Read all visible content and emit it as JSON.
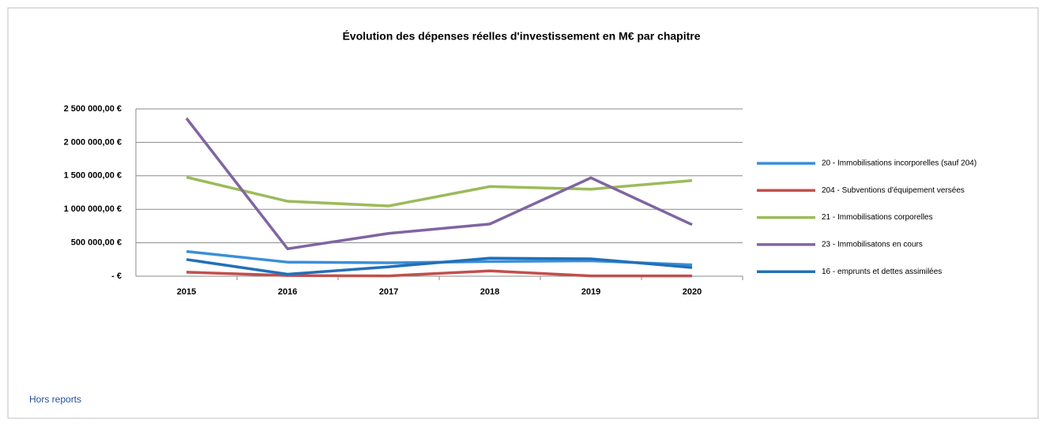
{
  "chart_data": {
    "type": "line",
    "title": "Évolution des dépenses réelles d'investissement en M€ par chapitre",
    "categories": [
      "2015",
      "2016",
      "2017",
      "2018",
      "2019",
      "2020"
    ],
    "series": [
      {
        "name": "20 - Immobilisations incorporelles (sauf 204)",
        "color": "#3b8fd6",
        "values": [
          370000,
          210000,
          200000,
          220000,
          230000,
          170000
        ]
      },
      {
        "name": "204 - Subventions d'équipement versées",
        "color": "#c0504d",
        "values": [
          60000,
          10000,
          5000,
          80000,
          5000,
          5000
        ]
      },
      {
        "name": "21 - Immobilisations corporelles",
        "color": "#9bbb59",
        "values": [
          1480000,
          1120000,
          1050000,
          1340000,
          1300000,
          1430000
        ]
      },
      {
        "name": "23 - Immobilisatons en cours",
        "color": "#8064a2",
        "values": [
          2360000,
          410000,
          640000,
          780000,
          1470000,
          770000
        ]
      },
      {
        "name": "16 - emprunts et dettes assimilées",
        "color": "#2270b8",
        "values": [
          250000,
          30000,
          140000,
          270000,
          260000,
          130000
        ]
      }
    ],
    "ylim": [
      0,
      2500000
    ],
    "yticks": [
      {
        "value": 0,
        "label": "- €"
      },
      {
        "value": 500000,
        "label": "500 000,00 €"
      },
      {
        "value": 1000000,
        "label": "1 000 000,00 €"
      },
      {
        "value": 1500000,
        "label": "1 500 000,00 €"
      },
      {
        "value": 2000000,
        "label": "2 000 000,00 €"
      },
      {
        "value": 2500000,
        "label": "2 500 000,00 €"
      }
    ],
    "grid": true,
    "legend": "right",
    "note": "Hors reports"
  }
}
